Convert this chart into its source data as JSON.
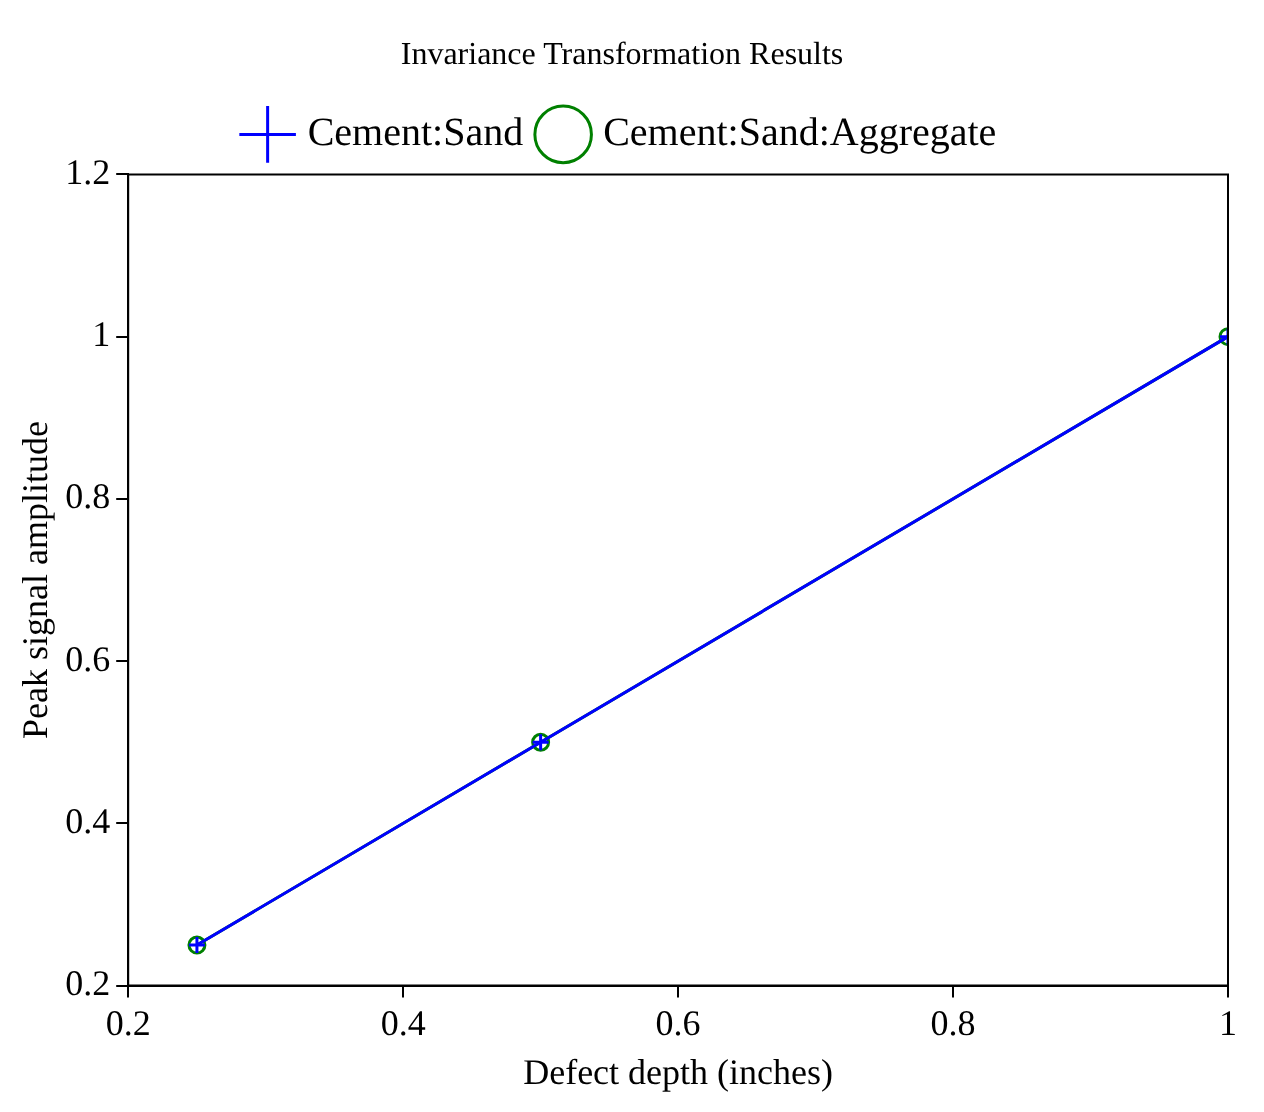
{
  "chart_data": {
    "type": "line",
    "title": "Invariance Transformation Results",
    "xlabel": "Defect depth (inches)",
    "ylabel": "Peak signal amplitude",
    "x": [
      0.25,
      0.5,
      1
    ],
    "series": [
      {
        "name": "Cement:Sand",
        "color": "#0000ff",
        "values": [
          0.25,
          0.5,
          1
        ],
        "marker": "cross"
      },
      {
        "name": "Cement:Sand:Aggregate",
        "color": "#008000",
        "values": [
          0.25,
          0.5,
          1
        ],
        "marker": "circle"
      }
    ],
    "xlim": [
      0.2,
      1
    ],
    "xticks": [
      0.2,
      0.4,
      0.6,
      0.8,
      1
    ],
    "ylim": [
      0.2,
      1.2
    ],
    "yticks": [
      0.2,
      0.4,
      0.6,
      0.8,
      1,
      1.2
    ],
    "grid": false,
    "legend": "top",
    "line_style": "solid"
  }
}
